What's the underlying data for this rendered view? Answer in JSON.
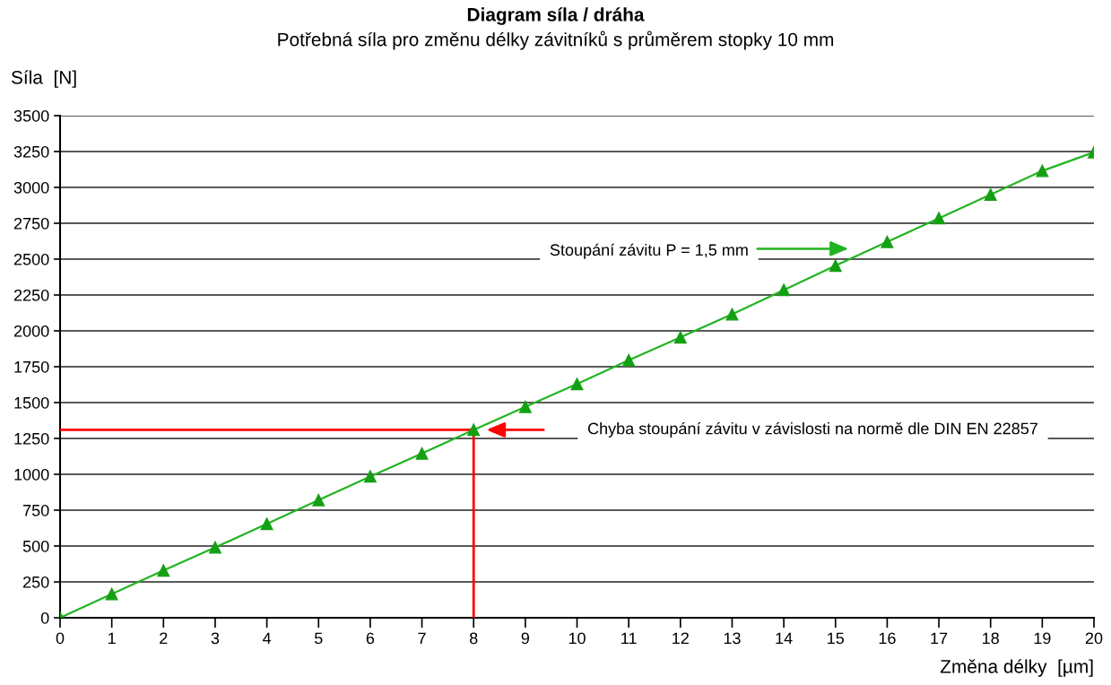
{
  "chart_data": {
    "type": "line",
    "title": "Diagram síla / dráha",
    "subtitle": "Potřebná síla pro změnu délky závitníků s průměrem stopky 10 mm",
    "xlabel": "Změna délky  [µm]",
    "ylabel": "Síla  [N]",
    "x": [
      0,
      1,
      2,
      3,
      4,
      5,
      6,
      7,
      8,
      9,
      10,
      11,
      12,
      13,
      14,
      15,
      16,
      17,
      18,
      19,
      20
    ],
    "series": [
      {
        "color": "#22b422",
        "values": [
          0,
          165,
          330,
          490,
          655,
          820,
          985,
          1145,
          1310,
          1470,
          1630,
          1795,
          1955,
          2115,
          2285,
          2455,
          2620,
          2785,
          2950,
          3115,
          3245
        ]
      }
    ],
    "xlim": [
      0,
      20
    ],
    "ylim": [
      0,
      3500
    ],
    "xticks": [
      0,
      1,
      2,
      3,
      4,
      5,
      6,
      7,
      8,
      9,
      10,
      11,
      12,
      13,
      14,
      15,
      16,
      17,
      18,
      19,
      20
    ],
    "yticks": [
      0,
      250,
      500,
      750,
      1000,
      1250,
      1500,
      1750,
      2000,
      2250,
      2500,
      2750,
      3000,
      3250,
      3500
    ],
    "grid": "y",
    "marker": "triangle",
    "line_style": "solid",
    "ref_lines": [
      {
        "axis": "x",
        "value": 8,
        "color": "#ff0000"
      },
      {
        "axis": "y",
        "value": 1310,
        "color": "#ff0000"
      }
    ],
    "annotations": [
      "Stoupání závitu P = 1,5 mm",
      "Chyba stoupání závitu v závislosti na normě dle DIN EN 22857"
    ]
  }
}
